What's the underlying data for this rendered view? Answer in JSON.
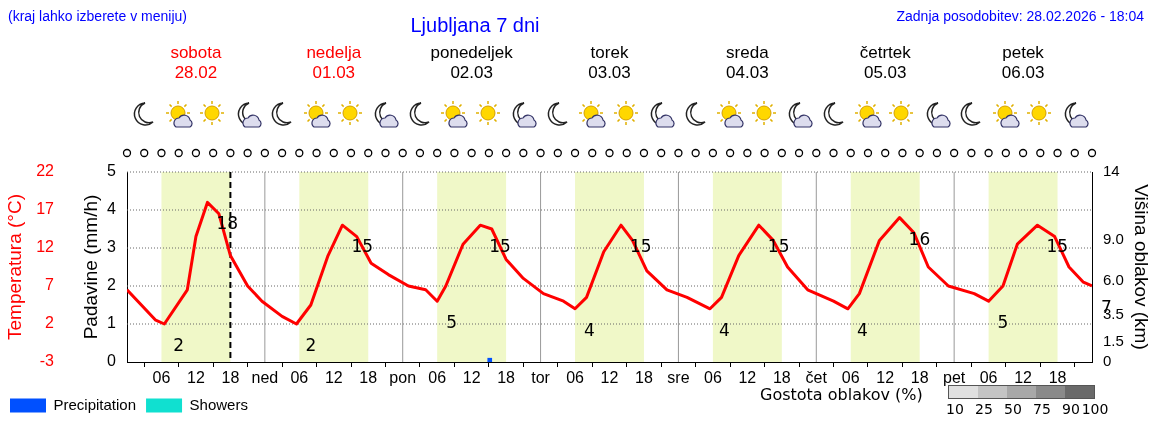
{
  "chart_data": {
    "type": "line",
    "title": "Ljubljana 7 dni",
    "ylabel": "Temperatura (°C)",
    "y2label": "Padavine (mm/h)",
    "y3label": "Višina oblakov (km)",
    "x": [
      "2026-02-28T00:00",
      "2026-02-28T05:00",
      "2026-02-28T06:30",
      "2026-02-28T10:30",
      "2026-02-28T12:00",
      "2026-02-28T14:00",
      "2026-02-28T16:00",
      "2026-02-28T18:00",
      "2026-02-28T21:00",
      "2026-02-28T23:30",
      "2026-03-01T03:00",
      "2026-03-01T05:30",
      "2026-03-01T08:00",
      "2026-03-01T11:00",
      "2026-03-01T13:30",
      "2026-03-01T16:00",
      "2026-03-01T18:30",
      "2026-03-01T21:30",
      "2026-03-02T01:00",
      "2026-03-02T04:00",
      "2026-03-02T06:00",
      "2026-03-02T07:30",
      "2026-03-02T10:30",
      "2026-03-02T13:30",
      "2026-03-02T15:30",
      "2026-03-02T18:00",
      "2026-03-02T21:00",
      "2026-03-03T00:30",
      "2026-03-03T04:00",
      "2026-03-03T06:00",
      "2026-03-03T08:00",
      "2026-03-03T11:00",
      "2026-03-03T14:00",
      "2026-03-03T16:00",
      "2026-03-03T18:30",
      "2026-03-03T22:00",
      "2026-03-04T01:30",
      "2026-03-04T05:30",
      "2026-03-04T07:30",
      "2026-03-04T10:30",
      "2026-03-04T14:00",
      "2026-03-04T16:30",
      "2026-03-04T19:00",
      "2026-03-04T22:30",
      "2026-03-05T03:00",
      "2026-03-05T05:30",
      "2026-03-05T07:30",
      "2026-03-05T11:00",
      "2026-03-05T14:30",
      "2026-03-05T17:00",
      "2026-03-05T19:30",
      "2026-03-05T23:00",
      "2026-03-06T03:30",
      "2026-03-06T06:00",
      "2026-03-06T08:30",
      "2026-03-06T11:00",
      "2026-03-06T14:30",
      "2026-03-06T17:30",
      "2026-03-06T20:00",
      "2026-03-06T22:30",
      "2026-03-07T00:00"
    ],
    "series": [
      {
        "color": "#ff0000",
        "values": [
          6.5,
          2.5,
          2,
          6.5,
          13.5,
          18,
          16.5,
          11,
          7,
          5,
          3,
          2,
          4.5,
          11,
          15,
          13.5,
          10,
          8.5,
          7,
          6.5,
          5,
          7,
          12.5,
          15,
          14.5,
          10.5,
          8,
          6,
          5,
          4,
          5.5,
          11.5,
          15,
          13,
          9,
          6.5,
          5.5,
          4,
          5.5,
          11,
          15,
          13,
          9.5,
          6.5,
          5,
          4,
          6,
          13,
          16,
          14,
          9.5,
          7,
          6,
          5,
          7,
          12.5,
          15,
          13.5,
          9.5,
          7.5,
          7
        ],
        "value_labels": [
          null,
          null,
          "2",
          null,
          null,
          "18",
          null,
          null,
          null,
          null,
          null,
          "2",
          null,
          null,
          "15",
          null,
          null,
          null,
          null,
          null,
          "5",
          null,
          null,
          "15",
          null,
          null,
          null,
          null,
          null,
          "4",
          null,
          null,
          "15",
          null,
          null,
          null,
          null,
          "4",
          null,
          null,
          "15",
          null,
          null,
          null,
          null,
          "4",
          null,
          null,
          "16",
          null,
          null,
          null,
          null,
          "5",
          null,
          null,
          "15",
          null,
          null,
          null,
          "7"
        ]
      },
      {
        "type": "bar",
        "name": "Precipitation",
        "color": "#0050ff",
        "axis": "y2",
        "x": [
          "2026-03-02T15:30"
        ],
        "values": [
          0.1
        ]
      },
      {
        "type": "bar",
        "name": "Showers",
        "color": "#10e0d0",
        "axis": "y2",
        "values": [
          null,
          null,
          null,
          null,
          null,
          null,
          null,
          null,
          null,
          null,
          null,
          null,
          null,
          null,
          null,
          null,
          null,
          null,
          null,
          null,
          null,
          null,
          null,
          null,
          null,
          null,
          null,
          null,
          null,
          null,
          null,
          null,
          null,
          null,
          null,
          null,
          null,
          null,
          null,
          null,
          null,
          null,
          null,
          null,
          null,
          null,
          null,
          null,
          null,
          null,
          null,
          null,
          null,
          null,
          null,
          null,
          null,
          null,
          null,
          null,
          null
        ]
      }
    ],
    "xlim": [
      "2026-02-28T00:00",
      "2026-03-07T00:00"
    ],
    "xticks": [
      {
        "value": "2026-02-28T06:00",
        "label": "06"
      },
      {
        "value": "2026-02-28T12:00",
        "label": "12"
      },
      {
        "value": "2026-02-28T18:00",
        "label": "18"
      },
      {
        "value": "2026-03-01T00:00",
        "label": "ned"
      },
      {
        "value": "2026-03-01T06:00",
        "label": "06"
      },
      {
        "value": "2026-03-01T12:00",
        "label": "12"
      },
      {
        "value": "2026-03-01T18:00",
        "label": "18"
      },
      {
        "value": "2026-03-02T00:00",
        "label": "pon"
      },
      {
        "value": "2026-03-02T06:00",
        "label": "06"
      },
      {
        "value": "2026-03-02T12:00",
        "label": "12"
      },
      {
        "value": "2026-03-02T18:00",
        "label": "18"
      },
      {
        "value": "2026-03-03T00:00",
        "label": "tor"
      },
      {
        "value": "2026-03-03T06:00",
        "label": "06"
      },
      {
        "value": "2026-03-03T12:00",
        "label": "12"
      },
      {
        "value": "2026-03-03T18:00",
        "label": "18"
      },
      {
        "value": "2026-03-04T00:00",
        "label": "sre"
      },
      {
        "value": "2026-03-04T06:00",
        "label": "06"
      },
      {
        "value": "2026-03-04T12:00",
        "label": "12"
      },
      {
        "value": "2026-03-04T18:00",
        "label": "18"
      },
      {
        "value": "2026-03-05T00:00",
        "label": "čet"
      },
      {
        "value": "2026-03-05T06:00",
        "label": "06"
      },
      {
        "value": "2026-03-05T12:00",
        "label": "12"
      },
      {
        "value": "2026-03-05T18:00",
        "label": "18"
      },
      {
        "value": "2026-03-06T00:00",
        "label": "pet"
      },
      {
        "value": "2026-03-06T06:00",
        "label": "06"
      },
      {
        "value": "2026-03-06T12:00",
        "label": "12"
      },
      {
        "value": "2026-03-06T18:00",
        "label": "18"
      }
    ],
    "x2lim": [
      "2026-02-28T00:00",
      "2026-03-07T00:00"
    ],
    "x2ticks": [
      {
        "value": "2026-02-28T12:00",
        "label": "sobota\n28.02"
      },
      {
        "value": "2026-03-01T12:00",
        "label": "nedelja\n01.03"
      },
      {
        "value": "2026-03-02T12:00",
        "label": "ponedeljek\n02.03"
      },
      {
        "value": "2026-03-03T12:00",
        "label": "torek\n03.03"
      },
      {
        "value": "2026-03-04T12:00",
        "label": "sreda\n04.03"
      },
      {
        "value": "2026-03-05T12:00",
        "label": "četrtek\n05.03"
      },
      {
        "value": "2026-03-06T12:00",
        "label": "petek\n06.03"
      }
    ],
    "ylim": [
      -3,
      22
    ],
    "yticks": [
      -3,
      2,
      7,
      12,
      17,
      22
    ],
    "y2lim": [
      0,
      5
    ],
    "y2ticks": [
      0,
      1,
      2,
      3,
      4,
      5
    ],
    "y3lim": [
      0,
      14
    ],
    "y3ticks": [
      0,
      1.5,
      3.5,
      {
        "value": 6,
        "label": "6.0"
      },
      {
        "value": 9,
        "label": "9.0"
      },
      14
    ],
    "bands": [
      {
        "axis": "x",
        "from": "2026-02-28T06:00",
        "to": "2026-02-28T18:00",
        "color": "#f0f8c8"
      },
      {
        "axis": "x",
        "from": "2026-03-01T06:00",
        "to": "2026-03-01T18:00",
        "color": "#f0f8c8"
      },
      {
        "axis": "x",
        "from": "2026-03-02T06:00",
        "to": "2026-03-02T18:00",
        "color": "#f0f8c8"
      },
      {
        "axis": "x",
        "from": "2026-03-03T06:00",
        "to": "2026-03-03T18:00",
        "color": "#f0f8c8"
      },
      {
        "axis": "x",
        "from": "2026-03-04T06:00",
        "to": "2026-03-04T18:00",
        "color": "#f0f8c8"
      },
      {
        "axis": "x",
        "from": "2026-03-05T06:00",
        "to": "2026-03-05T18:00",
        "color": "#f0f8c8"
      },
      {
        "axis": "x",
        "from": "2026-03-06T06:00",
        "to": "2026-03-06T18:00",
        "color": "#f0f8c8"
      }
    ],
    "ref_lines": [
      {
        "axis": "x",
        "value": "2026-02-28T18:00",
        "color": "#000000",
        "line_style": "dashed"
      }
    ],
    "annotations": [
      "(kraj lahko izberete v meniju)",
      "Zadnja posodobitev: 28.02.2026 - 18:04",
      "Gostota oblakov (%)",
      "10",
      "25",
      "50",
      "75",
      "90",
      "100"
    ],
    "grid": true,
    "legend": "bottom left",
    "marker": "none",
    "line_style": "solid"
  }
}
